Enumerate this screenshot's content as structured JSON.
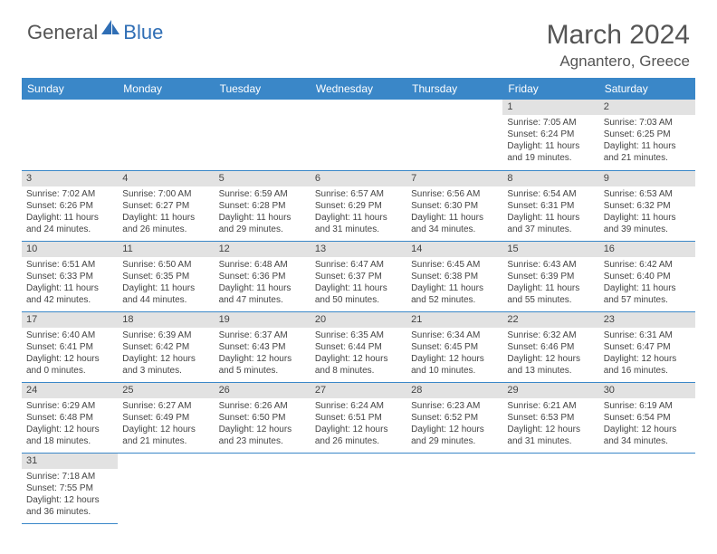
{
  "brand": {
    "part1": "General",
    "part2": "Blue"
  },
  "title": "March 2024",
  "location": "Agnantero, Greece",
  "colors": {
    "header_bg": "#3a87c8",
    "border": "#3a87c8",
    "daynum_bg": "#e2e2e2",
    "text": "#444444",
    "brand_gray": "#555555",
    "brand_blue": "#2f6eb5"
  },
  "fonts": {
    "title_size": 30,
    "location_size": 17,
    "day_header_size": 12,
    "daynum_size": 11,
    "body_size": 10
  },
  "dayNames": [
    "Sunday",
    "Monday",
    "Tuesday",
    "Wednesday",
    "Thursday",
    "Friday",
    "Saturday"
  ],
  "weeks": [
    [
      null,
      null,
      null,
      null,
      null,
      {
        "n": "1",
        "sr": "Sunrise: 7:05 AM",
        "ss": "Sunset: 6:24 PM",
        "dl": "Daylight: 11 hours and 19 minutes."
      },
      {
        "n": "2",
        "sr": "Sunrise: 7:03 AM",
        "ss": "Sunset: 6:25 PM",
        "dl": "Daylight: 11 hours and 21 minutes."
      }
    ],
    [
      {
        "n": "3",
        "sr": "Sunrise: 7:02 AM",
        "ss": "Sunset: 6:26 PM",
        "dl": "Daylight: 11 hours and 24 minutes."
      },
      {
        "n": "4",
        "sr": "Sunrise: 7:00 AM",
        "ss": "Sunset: 6:27 PM",
        "dl": "Daylight: 11 hours and 26 minutes."
      },
      {
        "n": "5",
        "sr": "Sunrise: 6:59 AM",
        "ss": "Sunset: 6:28 PM",
        "dl": "Daylight: 11 hours and 29 minutes."
      },
      {
        "n": "6",
        "sr": "Sunrise: 6:57 AM",
        "ss": "Sunset: 6:29 PM",
        "dl": "Daylight: 11 hours and 31 minutes."
      },
      {
        "n": "7",
        "sr": "Sunrise: 6:56 AM",
        "ss": "Sunset: 6:30 PM",
        "dl": "Daylight: 11 hours and 34 minutes."
      },
      {
        "n": "8",
        "sr": "Sunrise: 6:54 AM",
        "ss": "Sunset: 6:31 PM",
        "dl": "Daylight: 11 hours and 37 minutes."
      },
      {
        "n": "9",
        "sr": "Sunrise: 6:53 AM",
        "ss": "Sunset: 6:32 PM",
        "dl": "Daylight: 11 hours and 39 minutes."
      }
    ],
    [
      {
        "n": "10",
        "sr": "Sunrise: 6:51 AM",
        "ss": "Sunset: 6:33 PM",
        "dl": "Daylight: 11 hours and 42 minutes."
      },
      {
        "n": "11",
        "sr": "Sunrise: 6:50 AM",
        "ss": "Sunset: 6:35 PM",
        "dl": "Daylight: 11 hours and 44 minutes."
      },
      {
        "n": "12",
        "sr": "Sunrise: 6:48 AM",
        "ss": "Sunset: 6:36 PM",
        "dl": "Daylight: 11 hours and 47 minutes."
      },
      {
        "n": "13",
        "sr": "Sunrise: 6:47 AM",
        "ss": "Sunset: 6:37 PM",
        "dl": "Daylight: 11 hours and 50 minutes."
      },
      {
        "n": "14",
        "sr": "Sunrise: 6:45 AM",
        "ss": "Sunset: 6:38 PM",
        "dl": "Daylight: 11 hours and 52 minutes."
      },
      {
        "n": "15",
        "sr": "Sunrise: 6:43 AM",
        "ss": "Sunset: 6:39 PM",
        "dl": "Daylight: 11 hours and 55 minutes."
      },
      {
        "n": "16",
        "sr": "Sunrise: 6:42 AM",
        "ss": "Sunset: 6:40 PM",
        "dl": "Daylight: 11 hours and 57 minutes."
      }
    ],
    [
      {
        "n": "17",
        "sr": "Sunrise: 6:40 AM",
        "ss": "Sunset: 6:41 PM",
        "dl": "Daylight: 12 hours and 0 minutes."
      },
      {
        "n": "18",
        "sr": "Sunrise: 6:39 AM",
        "ss": "Sunset: 6:42 PM",
        "dl": "Daylight: 12 hours and 3 minutes."
      },
      {
        "n": "19",
        "sr": "Sunrise: 6:37 AM",
        "ss": "Sunset: 6:43 PM",
        "dl": "Daylight: 12 hours and 5 minutes."
      },
      {
        "n": "20",
        "sr": "Sunrise: 6:35 AM",
        "ss": "Sunset: 6:44 PM",
        "dl": "Daylight: 12 hours and 8 minutes."
      },
      {
        "n": "21",
        "sr": "Sunrise: 6:34 AM",
        "ss": "Sunset: 6:45 PM",
        "dl": "Daylight: 12 hours and 10 minutes."
      },
      {
        "n": "22",
        "sr": "Sunrise: 6:32 AM",
        "ss": "Sunset: 6:46 PM",
        "dl": "Daylight: 12 hours and 13 minutes."
      },
      {
        "n": "23",
        "sr": "Sunrise: 6:31 AM",
        "ss": "Sunset: 6:47 PM",
        "dl": "Daylight: 12 hours and 16 minutes."
      }
    ],
    [
      {
        "n": "24",
        "sr": "Sunrise: 6:29 AM",
        "ss": "Sunset: 6:48 PM",
        "dl": "Daylight: 12 hours and 18 minutes."
      },
      {
        "n": "25",
        "sr": "Sunrise: 6:27 AM",
        "ss": "Sunset: 6:49 PM",
        "dl": "Daylight: 12 hours and 21 minutes."
      },
      {
        "n": "26",
        "sr": "Sunrise: 6:26 AM",
        "ss": "Sunset: 6:50 PM",
        "dl": "Daylight: 12 hours and 23 minutes."
      },
      {
        "n": "27",
        "sr": "Sunrise: 6:24 AM",
        "ss": "Sunset: 6:51 PM",
        "dl": "Daylight: 12 hours and 26 minutes."
      },
      {
        "n": "28",
        "sr": "Sunrise: 6:23 AM",
        "ss": "Sunset: 6:52 PM",
        "dl": "Daylight: 12 hours and 29 minutes."
      },
      {
        "n": "29",
        "sr": "Sunrise: 6:21 AM",
        "ss": "Sunset: 6:53 PM",
        "dl": "Daylight: 12 hours and 31 minutes."
      },
      {
        "n": "30",
        "sr": "Sunrise: 6:19 AM",
        "ss": "Sunset: 6:54 PM",
        "dl": "Daylight: 12 hours and 34 minutes."
      }
    ],
    [
      {
        "n": "31",
        "sr": "Sunrise: 7:18 AM",
        "ss": "Sunset: 7:55 PM",
        "dl": "Daylight: 12 hours and 36 minutes."
      },
      null,
      null,
      null,
      null,
      null,
      null
    ]
  ]
}
